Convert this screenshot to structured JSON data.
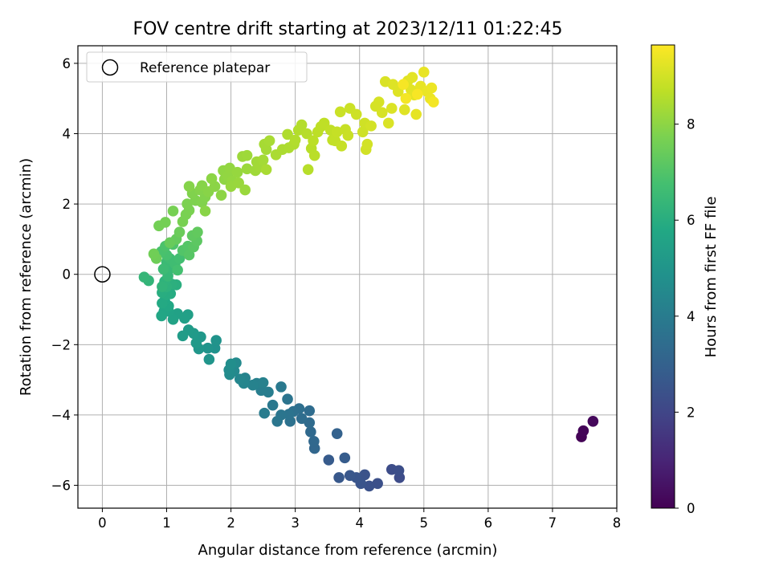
{
  "chart_data": {
    "type": "scatter",
    "title": "FOV centre drift starting at 2023/12/11 01:22:45",
    "xlabel": "Angular distance from reference (arcmin)",
    "ylabel": "Rotation from reference (arcmin)",
    "xlim": [
      -0.38,
      8.0
    ],
    "ylim": [
      -6.65,
      6.5
    ],
    "xticks": [
      0,
      1,
      2,
      3,
      4,
      5,
      6,
      7,
      8
    ],
    "yticks": [
      -6,
      -4,
      -2,
      0,
      2,
      4,
      6
    ],
    "grid": true,
    "colormap": "viridis",
    "colorbar": {
      "label": "Hours from first FF file",
      "range": [
        0,
        9.65
      ],
      "ticks": [
        0,
        2,
        4,
        6,
        8
      ]
    },
    "legend": {
      "position": "top-left",
      "entries": [
        {
          "label": "Reference platepar",
          "marker": "open-circle"
        }
      ]
    },
    "reference_point": {
      "x": 0,
      "y": 0
    },
    "points": [
      [
        7.45,
        -4.62,
        0.05
      ],
      [
        7.48,
        -4.45,
        0.12
      ],
      [
        7.63,
        -4.18,
        0.2
      ],
      [
        4.62,
        -5.78,
        2.2
      ],
      [
        4.5,
        -5.55,
        2.25
      ],
      [
        4.61,
        -5.58,
        2.3
      ],
      [
        4.28,
        -5.95,
        2.35
      ],
      [
        4.15,
        -6.02,
        2.4
      ],
      [
        4.08,
        -5.7,
        2.45
      ],
      [
        4.02,
        -5.95,
        2.5
      ],
      [
        3.95,
        -5.78,
        2.55
      ],
      [
        3.85,
        -5.72,
        2.6
      ],
      [
        3.68,
        -5.78,
        2.65
      ],
      [
        3.52,
        -5.28,
        2.75
      ],
      [
        3.77,
        -5.22,
        2.8
      ],
      [
        3.65,
        -4.53,
        3.0
      ],
      [
        3.3,
        -4.95,
        3.2
      ],
      [
        3.29,
        -4.75,
        3.25
      ],
      [
        3.24,
        -4.48,
        3.3
      ],
      [
        3.22,
        -4.22,
        3.35
      ],
      [
        3.22,
        -3.88,
        3.4
      ],
      [
        3.1,
        -4.1,
        3.45
      ],
      [
        3.06,
        -3.82,
        3.5
      ],
      [
        2.97,
        -3.9,
        3.55
      ],
      [
        2.92,
        -4.18,
        3.6
      ],
      [
        2.9,
        -3.98,
        3.65
      ],
      [
        2.88,
        -3.55,
        3.7
      ],
      [
        2.78,
        -4.0,
        3.75
      ],
      [
        2.72,
        -4.18,
        3.8
      ],
      [
        2.65,
        -3.72,
        3.85
      ],
      [
        2.78,
        -3.2,
        3.9
      ],
      [
        2.52,
        -3.95,
        4.0
      ],
      [
        2.58,
        -3.35,
        4.05
      ],
      [
        2.47,
        -3.3,
        4.1
      ],
      [
        2.4,
        -3.1,
        4.15
      ],
      [
        2.5,
        -3.08,
        4.2
      ],
      [
        2.34,
        -3.15,
        4.25
      ],
      [
        2.22,
        -2.95,
        4.3
      ],
      [
        2.2,
        -3.1,
        4.35
      ],
      [
        2.14,
        -2.98,
        4.4
      ],
      [
        2.05,
        -2.75,
        4.5
      ],
      [
        2.08,
        -2.52,
        4.55
      ],
      [
        1.98,
        -2.85,
        4.6
      ],
      [
        1.97,
        -2.72,
        4.65
      ],
      [
        2.0,
        -2.55,
        4.7
      ],
      [
        1.75,
        -2.1,
        4.85
      ],
      [
        1.77,
        -1.88,
        4.9
      ],
      [
        1.64,
        -2.1,
        4.95
      ],
      [
        1.66,
        -2.42,
        5.0
      ],
      [
        1.5,
        -2.12,
        5.05
      ],
      [
        1.53,
        -1.78,
        5.1
      ],
      [
        1.46,
        -1.95,
        5.15
      ],
      [
        1.42,
        -1.68,
        5.2
      ],
      [
        1.34,
        -1.58,
        5.25
      ],
      [
        1.25,
        -1.75,
        5.3
      ],
      [
        1.33,
        -1.15,
        5.4
      ],
      [
        1.28,
        -1.25,
        5.45
      ],
      [
        1.17,
        -1.12,
        5.5
      ],
      [
        1.1,
        -1.28,
        5.55
      ],
      [
        1.03,
        -1.05,
        5.6
      ],
      [
        0.96,
        -1.05,
        5.65
      ],
      [
        0.92,
        -1.18,
        5.7
      ],
      [
        1.03,
        -0.9,
        5.75
      ],
      [
        0.97,
        -0.75,
        5.8
      ],
      [
        0.93,
        -0.82,
        5.85
      ],
      [
        1.06,
        -0.55,
        5.9
      ],
      [
        1.0,
        -0.58,
        5.95
      ],
      [
        0.93,
        -0.52,
        6.0
      ],
      [
        1.15,
        -0.3,
        6.05
      ],
      [
        1.08,
        -0.28,
        6.1
      ],
      [
        1.0,
        -0.35,
        6.15
      ],
      [
        0.97,
        -0.2,
        6.2
      ],
      [
        0.93,
        -0.35,
        6.25
      ],
      [
        0.72,
        -0.18,
        6.3
      ],
      [
        0.65,
        -0.08,
        6.35
      ],
      [
        1.02,
        -0.05,
        6.4
      ],
      [
        1.07,
        0.18,
        6.45
      ],
      [
        1.0,
        0.35,
        6.5
      ],
      [
        0.95,
        0.15,
        6.55
      ],
      [
        1.05,
        0.45,
        6.6
      ],
      [
        1.13,
        0.3,
        6.65
      ],
      [
        1.2,
        0.45,
        6.7
      ],
      [
        1.17,
        0.12,
        6.75
      ],
      [
        1.0,
        0.55,
        6.8
      ],
      [
        0.92,
        0.65,
        6.85
      ],
      [
        0.98,
        0.8,
        6.9
      ],
      [
        1.1,
        0.85,
        6.95
      ],
      [
        1.25,
        0.68,
        7.0
      ],
      [
        1.33,
        0.8,
        7.05
      ],
      [
        1.35,
        0.55,
        7.1
      ],
      [
        1.42,
        0.78,
        7.15
      ],
      [
        1.47,
        0.95,
        7.2
      ],
      [
        1.4,
        1.1,
        7.25
      ],
      [
        1.48,
        1.2,
        7.3
      ],
      [
        1.15,
        1.0,
        7.35
      ],
      [
        1.05,
        0.9,
        7.4
      ],
      [
        1.2,
        1.2,
        7.45
      ],
      [
        0.84,
        0.45,
        7.5
      ],
      [
        0.8,
        0.58,
        7.55
      ],
      [
        0.88,
        1.38,
        7.6
      ],
      [
        0.98,
        1.48,
        7.62
      ],
      [
        1.1,
        1.8,
        7.65
      ],
      [
        1.25,
        1.5,
        7.68
      ],
      [
        1.3,
        1.7,
        7.7
      ],
      [
        1.35,
        1.82,
        7.72
      ],
      [
        1.32,
        2.0,
        7.75
      ],
      [
        1.45,
        2.1,
        7.78
      ],
      [
        1.4,
        2.3,
        7.8
      ],
      [
        1.55,
        2.05,
        7.82
      ],
      [
        1.6,
        2.2,
        7.84
      ],
      [
        1.52,
        2.4,
        7.86
      ],
      [
        1.35,
        2.5,
        7.88
      ],
      [
        1.55,
        2.52,
        7.9
      ],
      [
        1.65,
        2.35,
        7.92
      ],
      [
        1.6,
        1.8,
        7.94
      ],
      [
        1.75,
        2.5,
        7.96
      ],
      [
        1.7,
        2.72,
        7.98
      ],
      [
        1.85,
        2.25,
        8.0
      ],
      [
        1.9,
        2.7,
        8.02
      ],
      [
        1.88,
        2.95,
        8.04
      ],
      [
        1.95,
        2.8,
        8.06
      ],
      [
        1.98,
        3.02,
        8.08
      ],
      [
        2.02,
        2.65,
        8.1
      ],
      [
        2.1,
        2.9,
        8.12
      ],
      [
        2.0,
        2.5,
        8.14
      ],
      [
        2.12,
        2.6,
        8.16
      ],
      [
        2.22,
        2.4,
        8.18
      ],
      [
        2.25,
        3.0,
        8.2
      ],
      [
        2.18,
        3.35,
        8.22
      ],
      [
        2.25,
        3.38,
        8.24
      ],
      [
        2.38,
        2.95,
        8.26
      ],
      [
        2.4,
        3.2,
        8.28
      ],
      [
        2.45,
        3.05,
        8.3
      ],
      [
        2.5,
        3.25,
        8.32
      ],
      [
        2.55,
        3.55,
        8.34
      ],
      [
        2.52,
        3.7,
        8.36
      ],
      [
        2.6,
        3.8,
        8.38
      ],
      [
        2.55,
        2.98,
        8.4
      ],
      [
        2.7,
        3.4,
        8.42
      ],
      [
        2.8,
        3.55,
        8.44
      ],
      [
        2.9,
        3.6,
        8.46
      ],
      [
        2.88,
        3.98,
        8.48
      ],
      [
        2.98,
        3.7,
        8.5
      ],
      [
        3.0,
        3.82,
        8.52
      ],
      [
        3.05,
        4.1,
        8.54
      ],
      [
        3.1,
        4.25,
        8.56
      ],
      [
        3.18,
        4.0,
        8.58
      ],
      [
        3.2,
        2.98,
        8.6
      ],
      [
        3.25,
        3.58,
        8.62
      ],
      [
        3.3,
        3.38,
        8.64
      ],
      [
        3.28,
        3.8,
        8.66
      ],
      [
        3.35,
        4.05,
        8.68
      ],
      [
        3.4,
        4.2,
        8.7
      ],
      [
        3.45,
        4.3,
        8.72
      ],
      [
        3.55,
        4.1,
        8.74
      ],
      [
        3.58,
        3.82,
        8.76
      ],
      [
        3.62,
        3.8,
        8.78
      ],
      [
        3.65,
        4.05,
        8.8
      ],
      [
        3.72,
        3.65,
        8.82
      ],
      [
        3.78,
        4.12,
        8.84
      ],
      [
        3.82,
        3.95,
        8.86
      ],
      [
        3.7,
        4.62,
        8.88
      ],
      [
        3.85,
        4.72,
        8.9
      ],
      [
        3.95,
        4.55,
        8.92
      ],
      [
        4.05,
        4.05,
        8.94
      ],
      [
        4.08,
        4.3,
        8.96
      ],
      [
        4.1,
        3.55,
        8.98
      ],
      [
        4.12,
        3.7,
        9.0
      ],
      [
        4.18,
        4.22,
        9.02
      ],
      [
        4.25,
        4.78,
        9.04
      ],
      [
        4.3,
        4.9,
        9.06
      ],
      [
        4.35,
        4.6,
        9.08
      ],
      [
        4.4,
        5.48,
        9.1
      ],
      [
        4.45,
        4.3,
        9.12
      ],
      [
        4.5,
        4.72,
        9.14
      ],
      [
        4.52,
        5.4,
        9.16
      ],
      [
        4.6,
        5.2,
        9.18
      ],
      [
        4.7,
        4.68,
        9.2
      ],
      [
        4.75,
        5.5,
        9.22
      ],
      [
        4.8,
        5.25,
        9.24
      ],
      [
        4.82,
        5.6,
        9.26
      ],
      [
        4.85,
        5.1,
        9.28
      ],
      [
        4.88,
        4.55,
        9.3
      ],
      [
        4.95,
        5.35,
        9.32
      ],
      [
        5.0,
        5.75,
        9.34
      ],
      [
        5.05,
        5.2,
        9.36
      ],
      [
        5.1,
        5.0,
        9.38
      ],
      [
        5.12,
        5.3,
        9.4
      ],
      [
        5.15,
        4.9,
        9.5
      ],
      [
        4.72,
        5.0,
        9.52
      ],
      [
        4.68,
        5.4,
        9.54
      ],
      [
        4.9,
        5.12,
        9.56
      ]
    ]
  }
}
